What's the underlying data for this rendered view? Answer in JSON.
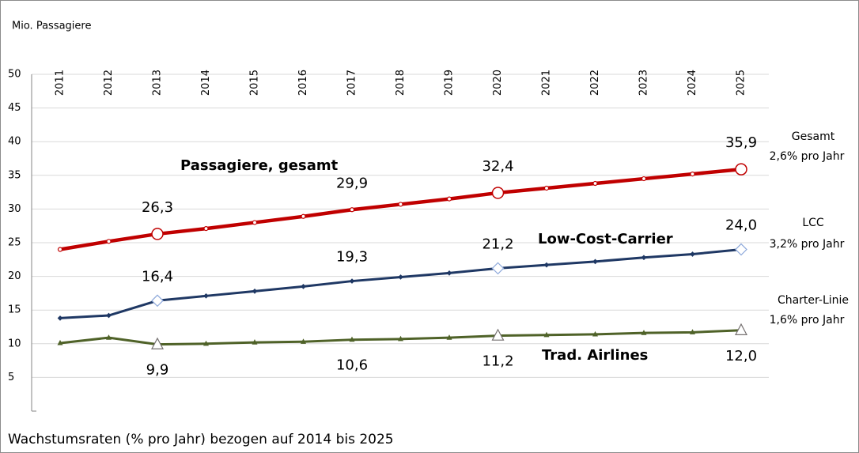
{
  "chart_data": {
    "type": "line",
    "ylabel": "Mio. Passagiere",
    "footnote": "Wachstumsraten (% pro Jahr) bezogen auf 2014 bis 2025",
    "categories": [
      "2011",
      "2012",
      "2013",
      "2014",
      "2015",
      "2016",
      "2017",
      "2018",
      "2019",
      "2020",
      "2021",
      "2022",
      "2023",
      "2024",
      "2025"
    ],
    "ylim": [
      0,
      50
    ],
    "yticks": [
      5,
      10,
      15,
      20,
      25,
      30,
      35,
      40,
      45,
      50
    ],
    "grid": true,
    "series": [
      {
        "name": "Passagiere, gesamt",
        "color": "#c00000",
        "values": [
          24.0,
          25.2,
          26.3,
          27.1,
          28.0,
          28.9,
          29.9,
          30.7,
          31.5,
          32.4,
          33.1,
          33.8,
          34.5,
          35.2,
          35.9
        ],
        "value_labels": [
          null,
          null,
          "26,3",
          null,
          null,
          null,
          "29,9",
          null,
          null,
          "32,4",
          null,
          null,
          null,
          null,
          "35,9"
        ]
      },
      {
        "name": "Low-Cost-Carrier",
        "color": "#1f3864",
        "values": [
          13.8,
          14.2,
          16.4,
          17.1,
          17.8,
          18.5,
          19.3,
          19.9,
          20.5,
          21.2,
          21.7,
          22.2,
          22.8,
          23.3,
          24.0
        ],
        "value_labels": [
          null,
          null,
          "16,4",
          null,
          null,
          null,
          "19,3",
          null,
          null,
          "21,2",
          null,
          null,
          null,
          null,
          "24,0"
        ]
      },
      {
        "name": "Trad. Airlines",
        "color": "#4f6228",
        "values": [
          10.1,
          10.9,
          9.9,
          10.0,
          10.2,
          10.3,
          10.6,
          10.7,
          10.9,
          11.2,
          11.3,
          11.4,
          11.6,
          11.7,
          12.0
        ],
        "value_labels": [
          null,
          null,
          "9,9",
          null,
          null,
          null,
          "10,6",
          null,
          null,
          "11,2",
          null,
          null,
          null,
          null,
          "12,0"
        ]
      }
    ],
    "annotations": [
      [
        "Gesamt",
        "2,6% pro Jahr"
      ],
      [
        "LCC",
        "3,2% pro Jahr"
      ],
      [
        "Charter-Linie",
        "1,6% pro Jahr"
      ]
    ]
  }
}
